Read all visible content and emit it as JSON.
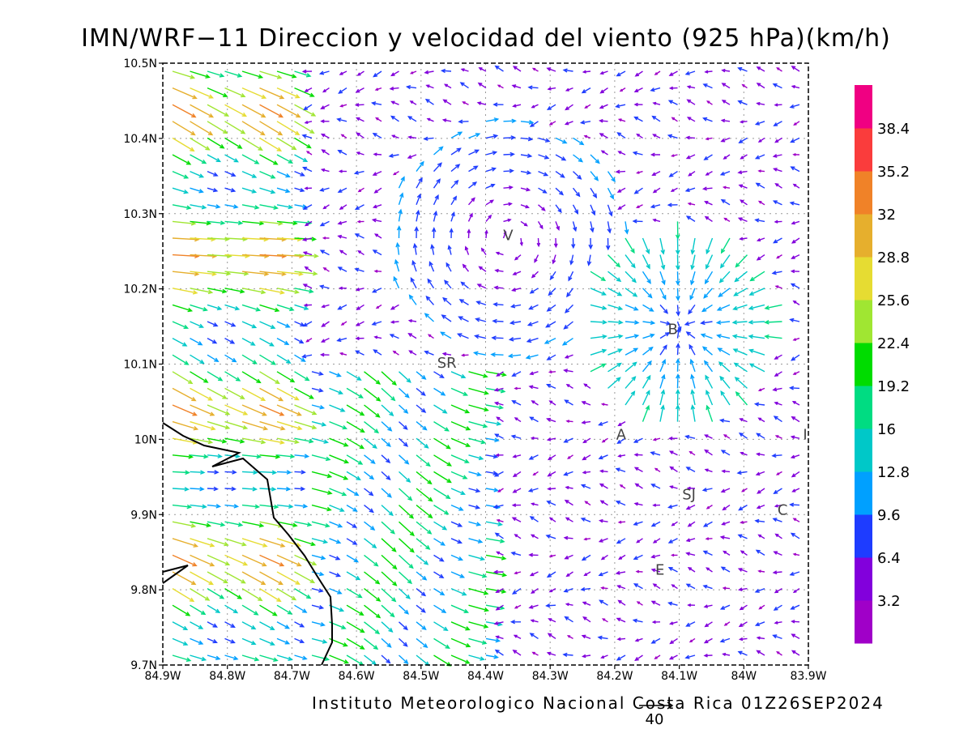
{
  "title": "IMN/WRF−11 Direccion y velocidad del viento (925 hPa)(km/h)",
  "credit": "Instituto Meteorologico Nacional Costa Rica 01Z26SEP2024",
  "reference_vector": {
    "label": "40",
    "value": 40
  },
  "axes": {
    "lon_ticks": [
      "84.9W",
      "84.8W",
      "84.7W",
      "84.6W",
      "84.5W",
      "84.4W",
      "84.3W",
      "84.2W",
      "84.1W",
      "84W",
      "83.9W"
    ],
    "lat_ticks": [
      "10.5N",
      "10.4N",
      "10.3N",
      "10.2N",
      "10.1N",
      "10N",
      "9.9N",
      "9.8N",
      "9.7N"
    ],
    "lon_range": [
      -84.9,
      -83.9
    ],
    "lat_range": [
      9.7,
      10.5
    ],
    "grid": "dotted"
  },
  "colorbar": {
    "labels": [
      "38.4",
      "35.2",
      "32",
      "28.8",
      "25.6",
      "22.4",
      "19.2",
      "16",
      "12.8",
      "9.6",
      "6.4",
      "3.2"
    ],
    "colors_bottom_to_top": [
      "#a000c8",
      "#8200dc",
      "#1e3cff",
      "#00a0ff",
      "#00c8c8",
      "#00dc82",
      "#00dc00",
      "#a0e632",
      "#e6dc32",
      "#e6af2d",
      "#f08228",
      "#fa3c3c",
      "#f00082"
    ]
  },
  "stations": [
    {
      "label": "V",
      "lon": -84.365,
      "lat": 10.265
    },
    {
      "label": "B",
      "lon": -84.11,
      "lat": 10.14
    },
    {
      "label": "SR",
      "lon": -84.46,
      "lat": 10.095
    },
    {
      "label": "A",
      "lon": -84.19,
      "lat": 10.0
    },
    {
      "label": "I",
      "lon": -83.905,
      "lat": 10.0
    },
    {
      "label": "SJ",
      "lon": -84.085,
      "lat": 9.92
    },
    {
      "label": "C",
      "lon": -83.94,
      "lat": 9.9
    },
    {
      "label": "E",
      "lon": -84.13,
      "lat": 9.82
    }
  ],
  "icons": {
    "wind_vector": "arrow-icon"
  }
}
